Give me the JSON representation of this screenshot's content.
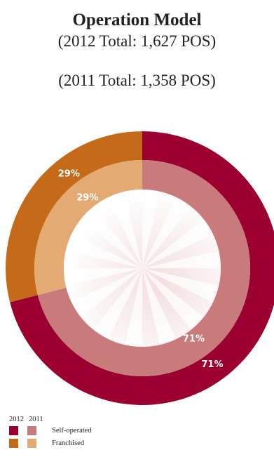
{
  "title": "Operation Model",
  "subtitle_2012": "(2012 Total: 1,627 POS)",
  "subtitle_2011": "(2011 Total: 1,358 POS)",
  "chart_data": {
    "type": "pie",
    "variant": "nested-donut",
    "categories": [
      "Self-operated",
      "Franchised"
    ],
    "series": [
      {
        "name": "2012",
        "ring": "outer",
        "values": [
          71,
          29
        ],
        "labels": [
          "71%",
          "29%"
        ]
      },
      {
        "name": "2011",
        "ring": "inner",
        "values": [
          71,
          29
        ],
        "labels": [
          "71%",
          "29%"
        ]
      }
    ],
    "colors": {
      "2012": [
        "#9c0030",
        "#c56a18"
      ],
      "2011": [
        "#c97a7a",
        "#e3aa74"
      ]
    },
    "legend_position": "bottom-left"
  },
  "legend": {
    "year_a": "2012",
    "year_b": "2011",
    "items": [
      {
        "label": "Self-operated",
        "color_a": "#9c0030",
        "color_b": "#c97a7a"
      },
      {
        "label": "Franchised",
        "color_a": "#c56a18",
        "color_b": "#e3aa74"
      }
    ]
  }
}
